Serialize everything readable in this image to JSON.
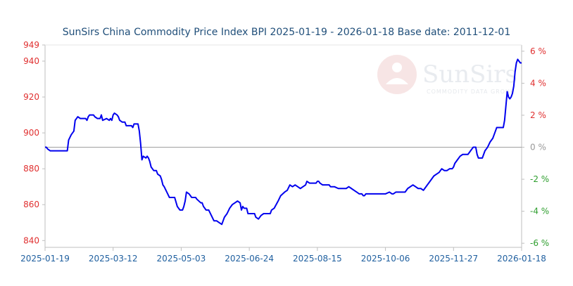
{
  "chart_data": {
    "type": "line",
    "title": "SunSirs China Commodity Price Index BPI 2025-01-19 - 2026-01-18 Base date: 2011-12-01",
    "watermark": {
      "brand": "SunSirs",
      "tagline": "COMMODITY DATA GROUP"
    },
    "x_tick_labels": [
      "2025-01-19",
      "2025-03-12",
      "2025-05-03",
      "2025-06-24",
      "2025-08-15",
      "2025-10-06",
      "2025-11-27",
      "2026-01-18"
    ],
    "x_range": [
      "2025-01-19",
      "2026-01-18"
    ],
    "y_left": {
      "ticks": [
        "949",
        "940",
        "920",
        "900",
        "880",
        "860",
        "840"
      ],
      "tick_values": [
        949,
        940,
        920,
        900,
        880,
        860,
        840
      ],
      "range": [
        836.2,
        949
      ],
      "color": "#e03030"
    },
    "y_right": {
      "ticks": [
        "6 %",
        "4 %",
        "2 %",
        "0 %",
        "-2 %",
        "-4 %",
        "-6 %"
      ],
      "positive_color": "#e03030",
      "zero_color": "#999999",
      "negative_color": "#2e9e2e"
    },
    "baseline_value": 892,
    "grid": false,
    "series": [
      {
        "color": "#0000ee",
        "points": [
          [
            "2025-01-19",
            892
          ],
          [
            "2025-01-20",
            892
          ],
          [
            "2025-01-21",
            891
          ],
          [
            "2025-01-23",
            890
          ],
          [
            "2025-01-26",
            890
          ],
          [
            "2025-02-01",
            890
          ],
          [
            "2025-02-05",
            890
          ],
          [
            "2025-02-06",
            896
          ],
          [
            "2025-02-08",
            899
          ],
          [
            "2025-02-10",
            901
          ],
          [
            "2025-02-11",
            907
          ],
          [
            "2025-02-12",
            908
          ],
          [
            "2025-02-13",
            909
          ],
          [
            "2025-02-15",
            908
          ],
          [
            "2025-02-19",
            908
          ],
          [
            "2025-02-20",
            907
          ],
          [
            "2025-02-21",
            909
          ],
          [
            "2025-02-22",
            910
          ],
          [
            "2025-02-25",
            910
          ],
          [
            "2025-02-26",
            909
          ],
          [
            "2025-02-28",
            908
          ],
          [
            "2025-03-02",
            908
          ],
          [
            "2025-03-03",
            910
          ],
          [
            "2025-03-04",
            907
          ],
          [
            "2025-03-07",
            908
          ],
          [
            "2025-03-09",
            907
          ],
          [
            "2025-03-10",
            908
          ],
          [
            "2025-03-11",
            907
          ],
          [
            "2025-03-12",
            910
          ],
          [
            "2025-03-13",
            911
          ],
          [
            "2025-03-15",
            910
          ],
          [
            "2025-03-16",
            909
          ],
          [
            "2025-03-17",
            907
          ],
          [
            "2025-03-19",
            906
          ],
          [
            "2025-03-21",
            906
          ],
          [
            "2025-03-22",
            904
          ],
          [
            "2025-03-26",
            904
          ],
          [
            "2025-03-27",
            903
          ],
          [
            "2025-03-28",
            905
          ],
          [
            "2025-03-31",
            905
          ],
          [
            "2025-04-01",
            901
          ],
          [
            "2025-04-02",
            894
          ],
          [
            "2025-04-03",
            885
          ],
          [
            "2025-04-04",
            887
          ],
          [
            "2025-04-06",
            886
          ],
          [
            "2025-04-07",
            887
          ],
          [
            "2025-04-08",
            886
          ],
          [
            "2025-04-09",
            884
          ],
          [
            "2025-04-10",
            881
          ],
          [
            "2025-04-12",
            879
          ],
          [
            "2025-04-14",
            879
          ],
          [
            "2025-04-15",
            877
          ],
          [
            "2025-04-17",
            876
          ],
          [
            "2025-04-18",
            874
          ],
          [
            "2025-04-19",
            871
          ],
          [
            "2025-04-20",
            870
          ],
          [
            "2025-04-22",
            867
          ],
          [
            "2025-04-24",
            864
          ],
          [
            "2025-04-26",
            864
          ],
          [
            "2025-04-28",
            864
          ],
          [
            "2025-04-30",
            859
          ],
          [
            "2025-05-02",
            857
          ],
          [
            "2025-05-04",
            857
          ],
          [
            "2025-05-05",
            859
          ],
          [
            "2025-05-06",
            862
          ],
          [
            "2025-05-07",
            867
          ],
          [
            "2025-05-09",
            866
          ],
          [
            "2025-05-11",
            864
          ],
          [
            "2025-05-14",
            864
          ],
          [
            "2025-05-15",
            863
          ],
          [
            "2025-05-18",
            861
          ],
          [
            "2025-05-19",
            861
          ],
          [
            "2025-05-20",
            859
          ],
          [
            "2025-05-22",
            857
          ],
          [
            "2025-05-24",
            857
          ],
          [
            "2025-05-26",
            854
          ],
          [
            "2025-05-28",
            851
          ],
          [
            "2025-05-30",
            851
          ],
          [
            "2025-06-01",
            850
          ],
          [
            "2025-06-03",
            849
          ],
          [
            "2025-06-04",
            851
          ],
          [
            "2025-06-05",
            853
          ],
          [
            "2025-06-07",
            855
          ],
          [
            "2025-06-09",
            858
          ],
          [
            "2025-06-11",
            860
          ],
          [
            "2025-06-13",
            861
          ],
          [
            "2025-06-15",
            862
          ],
          [
            "2025-06-17",
            861
          ],
          [
            "2025-06-18",
            857
          ],
          [
            "2025-06-19",
            859
          ],
          [
            "2025-06-20",
            858
          ],
          [
            "2025-06-22",
            858
          ],
          [
            "2025-06-23",
            855
          ],
          [
            "2025-06-26",
            855
          ],
          [
            "2025-06-28",
            855
          ],
          [
            "2025-06-29",
            853
          ],
          [
            "2025-07-01",
            852
          ],
          [
            "2025-07-03",
            854
          ],
          [
            "2025-07-05",
            855
          ],
          [
            "2025-07-08",
            855
          ],
          [
            "2025-07-10",
            855
          ],
          [
            "2025-07-11",
            857
          ],
          [
            "2025-07-13",
            858
          ],
          [
            "2025-07-16",
            862
          ],
          [
            "2025-07-18",
            865
          ],
          [
            "2025-07-21",
            867
          ],
          [
            "2025-07-23",
            868
          ],
          [
            "2025-07-25",
            871
          ],
          [
            "2025-07-27",
            870
          ],
          [
            "2025-07-29",
            871
          ],
          [
            "2025-07-31",
            870
          ],
          [
            "2025-08-02",
            869
          ],
          [
            "2025-08-04",
            870
          ],
          [
            "2025-08-06",
            871
          ],
          [
            "2025-08-07",
            873
          ],
          [
            "2025-08-09",
            872
          ],
          [
            "2025-08-11",
            872
          ],
          [
            "2025-08-14",
            872
          ],
          [
            "2025-08-15",
            873
          ],
          [
            "2025-08-16",
            873
          ],
          [
            "2025-08-17",
            872
          ],
          [
            "2025-08-19",
            871
          ],
          [
            "2025-08-21",
            871
          ],
          [
            "2025-08-24",
            871
          ],
          [
            "2025-08-25",
            870
          ],
          [
            "2025-08-28",
            870
          ],
          [
            "2025-08-31",
            869
          ],
          [
            "2025-09-04",
            869
          ],
          [
            "2025-09-06",
            869
          ],
          [
            "2025-09-08",
            870
          ],
          [
            "2025-09-10",
            869
          ],
          [
            "2025-09-12",
            868
          ],
          [
            "2025-09-14",
            867
          ],
          [
            "2025-09-16",
            866
          ],
          [
            "2025-09-18",
            866
          ],
          [
            "2025-09-19",
            865
          ],
          [
            "2025-09-20",
            865
          ],
          [
            "2025-09-21",
            866
          ],
          [
            "2025-09-23",
            866
          ],
          [
            "2025-09-26",
            866
          ],
          [
            "2025-09-29",
            866
          ],
          [
            "2025-10-02",
            866
          ],
          [
            "2025-10-06",
            866
          ],
          [
            "2025-10-09",
            867
          ],
          [
            "2025-10-11",
            866
          ],
          [
            "2025-10-12",
            866
          ],
          [
            "2025-10-14",
            867
          ],
          [
            "2025-10-16",
            867
          ],
          [
            "2025-10-19",
            867
          ],
          [
            "2025-10-21",
            867
          ],
          [
            "2025-10-23",
            869
          ],
          [
            "2025-10-25",
            870
          ],
          [
            "2025-10-27",
            871
          ],
          [
            "2025-10-29",
            870
          ],
          [
            "2025-10-31",
            869
          ],
          [
            "2025-11-02",
            869
          ],
          [
            "2025-11-04",
            868
          ],
          [
            "2025-11-05",
            869
          ],
          [
            "2025-11-07",
            871
          ],
          [
            "2025-11-10",
            874
          ],
          [
            "2025-11-12",
            876
          ],
          [
            "2025-11-14",
            877
          ],
          [
            "2025-11-16",
            878
          ],
          [
            "2025-11-17",
            879
          ],
          [
            "2025-11-18",
            880
          ],
          [
            "2025-11-20",
            879
          ],
          [
            "2025-11-22",
            879
          ],
          [
            "2025-11-24",
            880
          ],
          [
            "2025-11-26",
            880
          ],
          [
            "2025-11-27",
            881
          ],
          [
            "2025-11-28",
            883
          ],
          [
            "2025-11-30",
            885
          ],
          [
            "2025-12-02",
            887
          ],
          [
            "2025-12-04",
            888
          ],
          [
            "2025-12-06",
            888
          ],
          [
            "2025-12-08",
            888
          ],
          [
            "2025-12-10",
            890
          ],
          [
            "2025-12-12",
            892
          ],
          [
            "2025-12-14",
            892
          ],
          [
            "2025-12-15",
            888
          ],
          [
            "2025-12-16",
            886
          ],
          [
            "2025-12-18",
            886
          ],
          [
            "2025-12-19",
            886
          ],
          [
            "2025-12-21",
            890
          ],
          [
            "2025-12-23",
            892
          ],
          [
            "2025-12-25",
            895
          ],
          [
            "2025-12-27",
            897
          ],
          [
            "2025-12-28",
            899
          ],
          [
            "2025-12-29",
            901
          ],
          [
            "2025-12-30",
            903
          ],
          [
            "2025-12-31",
            903
          ],
          [
            "2026-01-02",
            903
          ],
          [
            "2026-01-04",
            903
          ],
          [
            "2026-01-05",
            907
          ],
          [
            "2026-01-06",
            915
          ],
          [
            "2026-01-07",
            923
          ],
          [
            "2026-01-08",
            920
          ],
          [
            "2026-01-09",
            919
          ],
          [
            "2026-01-10",
            920
          ],
          [
            "2026-01-11",
            922
          ],
          [
            "2026-01-12",
            926
          ],
          [
            "2026-01-13",
            934
          ],
          [
            "2026-01-14",
            939
          ],
          [
            "2026-01-15",
            941
          ],
          [
            "2026-01-16",
            940
          ],
          [
            "2026-01-17",
            939
          ],
          [
            "2026-01-18",
            939
          ]
        ]
      }
    ]
  }
}
